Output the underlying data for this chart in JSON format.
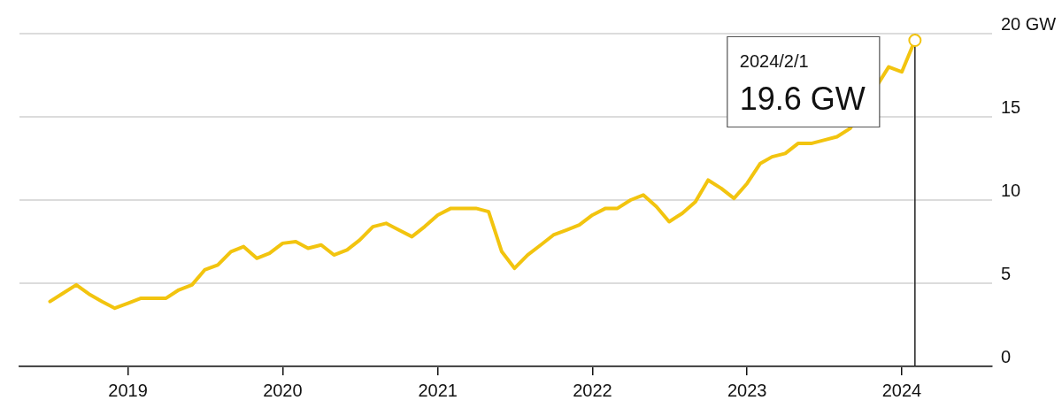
{
  "chart_data": {
    "type": "line",
    "x": [
      "2018-07",
      "2018-08",
      "2018-09",
      "2018-10",
      "2018-11",
      "2018-12",
      "2019-01",
      "2019-02",
      "2019-03",
      "2019-04",
      "2019-05",
      "2019-06",
      "2019-07",
      "2019-08",
      "2019-09",
      "2019-10",
      "2019-11",
      "2019-12",
      "2020-01",
      "2020-02",
      "2020-03",
      "2020-04",
      "2020-05",
      "2020-06",
      "2020-07",
      "2020-08",
      "2020-09",
      "2020-10",
      "2020-11",
      "2020-12",
      "2021-01",
      "2021-02",
      "2021-03",
      "2021-04",
      "2021-05",
      "2021-06",
      "2021-07",
      "2021-08",
      "2021-09",
      "2021-10",
      "2021-11",
      "2021-12",
      "2022-01",
      "2022-02",
      "2022-03",
      "2022-04",
      "2022-05",
      "2022-06",
      "2022-07",
      "2022-08",
      "2022-09",
      "2022-10",
      "2022-11",
      "2022-12",
      "2023-01",
      "2023-02",
      "2023-03",
      "2023-04",
      "2023-05",
      "2023-06",
      "2023-07",
      "2023-08",
      "2023-09",
      "2023-10",
      "2023-11",
      "2023-12",
      "2024-01",
      "2024-02"
    ],
    "series": [
      {
        "color": "#f2c40f",
        "values": [
          3.9,
          4.4,
          4.9,
          4.35,
          3.9,
          3.5,
          3.8,
          4.1,
          4.1,
          4.1,
          4.6,
          4.9,
          5.8,
          6.1,
          6.9,
          7.2,
          6.5,
          6.8,
          7.4,
          7.5,
          7.1,
          7.3,
          6.7,
          7.0,
          7.6,
          8.4,
          8.6,
          8.2,
          7.8,
          8.4,
          9.1,
          9.5,
          9.5,
          9.5,
          9.3,
          6.9,
          5.9,
          6.7,
          7.3,
          7.9,
          8.2,
          8.5,
          9.1,
          9.5,
          9.5,
          10.0,
          10.3,
          9.6,
          8.7,
          9.2,
          9.9,
          11.2,
          10.7,
          10.1,
          11.0,
          12.2,
          12.6,
          12.8,
          13.4,
          13.4,
          13.6,
          13.8,
          14.3,
          null,
          null,
          18.0,
          17.7,
          19.6
        ]
      }
    ],
    "xlim": [
      "2018-04-20",
      "2024-08-01"
    ],
    "xticks": [
      "2019",
      "2020",
      "2021",
      "2022",
      "2023",
      "2024"
    ],
    "ylim": [
      0,
      20
    ],
    "yticks": [
      0,
      5,
      10,
      15,
      {
        "value": 20,
        "label": "20 GW"
      }
    ],
    "grid": "y",
    "legend": false,
    "marker": "none",
    "line_style": "solid",
    "ref_lines": [
      {
        "axis": "x",
        "value": "2024-02-01",
        "color": "#222222"
      }
    ],
    "annotations": [
      "2024/2/1",
      "19.6 GW"
    ]
  }
}
